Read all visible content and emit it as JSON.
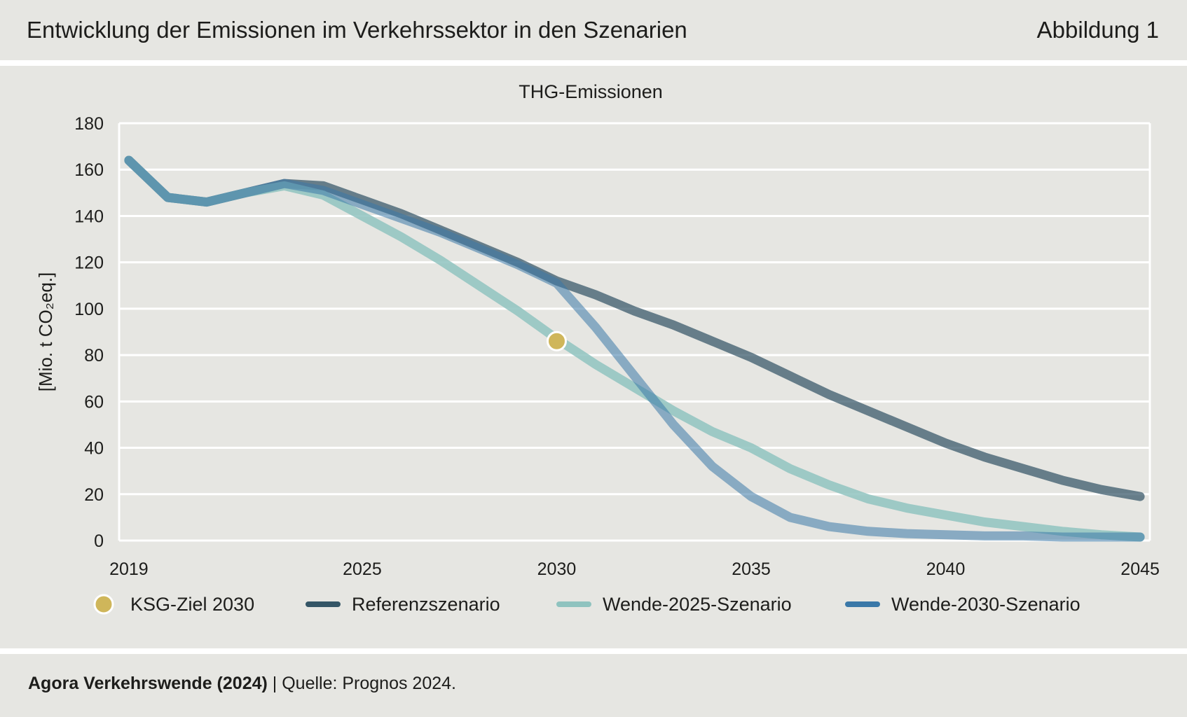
{
  "header": {
    "title": "Entwicklung der Emissionen im Verkehrssektor in den Szenarien",
    "figure_label": "Abbildung 1"
  },
  "footer": {
    "source_bold": "Agora Verkehrswende (2024)",
    "source_rest": " | Quelle: Prognos 2024."
  },
  "colors": {
    "background": "#e6e6e2",
    "gridline": "#ffffff",
    "referenz": "#345566",
    "wende2025": "#8fc3bf",
    "wende2030": "#3a78a8",
    "ksg": "#cfb65a"
  },
  "chart_data": {
    "type": "line",
    "title": "THG-Emissionen",
    "ylabel": "[Mio. t CO₂eq.]",
    "ylim": [
      0,
      180
    ],
    "yticks": [
      0,
      20,
      40,
      60,
      80,
      100,
      120,
      140,
      160,
      180
    ],
    "xlim": [
      2018.75,
      2045.25
    ],
    "xticks": [
      "2019",
      "2025",
      "2030",
      "2035",
      "2040",
      "2045"
    ],
    "grid": true,
    "legend_position": "bottom",
    "x": [
      2019,
      2020,
      2021,
      2022,
      2023,
      2024,
      2025,
      2026,
      2027,
      2028,
      2029,
      2030,
      2031,
      2032,
      2033,
      2034,
      2035,
      2036,
      2037,
      2038,
      2039,
      2040,
      2041,
      2042,
      2043,
      2044,
      2045
    ],
    "series": [
      {
        "name": "Referenzszenario",
        "values": [
          164,
          148,
          146,
          150,
          154,
          153,
          147,
          141,
          134,
          127,
          120,
          112,
          106,
          99,
          93,
          86,
          79,
          71,
          63,
          56,
          49,
          42,
          36,
          31,
          26,
          22,
          19
        ]
      },
      {
        "name": "Wende-2025-Szenario",
        "values": [
          164,
          148,
          146,
          150,
          153,
          149,
          140,
          131,
          121,
          110,
          99,
          87,
          76,
          66,
          56,
          47,
          40,
          31,
          24,
          18,
          14,
          11,
          8,
          6,
          4,
          2.5,
          1.5
        ]
      },
      {
        "name": "Wende-2030-Szenario",
        "values": [
          164,
          148,
          146,
          150,
          154,
          151,
          145,
          139,
          133,
          126,
          119,
          111,
          92,
          71,
          50,
          32,
          19,
          10,
          6,
          4,
          3,
          2.5,
          2,
          2,
          1.5,
          1.5,
          1.5
        ]
      }
    ],
    "markers": [
      {
        "name": "KSG-Ziel 2030",
        "x": 2030,
        "y": 86
      }
    ]
  }
}
